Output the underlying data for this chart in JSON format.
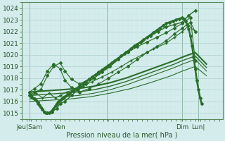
{
  "xlabel": "Pression niveau de la mer( hPa )",
  "bg_color": "#d4ecec",
  "grid_color": "#b0d0d0",
  "grid_minor_color": "#c8e4e4",
  "line_color": "#2a6e2a",
  "spine_color": "#5a8a5a",
  "tick_color": "#2a5a2a",
  "xlim": [
    0,
    125
  ],
  "ylim": [
    1014.5,
    1024.5
  ],
  "yticks": [
    1015,
    1016,
    1017,
    1018,
    1019,
    1020,
    1021,
    1022,
    1023,
    1024
  ],
  "xtick_positions": [
    5,
    24,
    53,
    100,
    110
  ],
  "xtick_labels": [
    "Jeu|Sam",
    "Ven",
    "",
    "Dim",
    "Lun|"
  ],
  "vlines": [
    5,
    53,
    100,
    110
  ],
  "series": [
    {
      "x": [
        5,
        8,
        10,
        13,
        16,
        19,
        22,
        24,
        27,
        31,
        35,
        40,
        45,
        50,
        55,
        60,
        65,
        70,
        75,
        80,
        85,
        90,
        95,
        100,
        104,
        108
      ],
      "y": [
        1016.8,
        1016.2,
        1015.8,
        1015.3,
        1015.0,
        1015.1,
        1015.4,
        1015.8,
        1016.0,
        1016.5,
        1017.0,
        1017.5,
        1018.0,
        1018.5,
        1019.0,
        1019.6,
        1020.2,
        1020.8,
        1021.2,
        1021.6,
        1022.0,
        1022.4,
        1022.6,
        1022.8,
        1023.4,
        1023.8
      ],
      "marker": "D",
      "markersize": 2,
      "lw": 1.0
    },
    {
      "x": [
        5,
        9,
        13,
        17,
        21,
        24,
        28,
        33,
        38,
        44,
        50,
        56,
        62,
        68,
        75,
        82,
        90,
        95,
        100,
        104,
        108
      ],
      "y": [
        1016.5,
        1016.7,
        1016.3,
        1016.7,
        1016.3,
        1016.5,
        1016.8,
        1017.0,
        1017.3,
        1017.7,
        1018.1,
        1018.5,
        1019.0,
        1019.5,
        1020.0,
        1020.5,
        1021.0,
        1021.5,
        1022.0,
        1022.5,
        1022.0
      ],
      "marker": "+",
      "markersize": 3,
      "lw": 0.8
    },
    {
      "x": [
        5,
        8,
        12,
        16,
        20,
        24,
        27,
        31,
        36,
        42,
        48,
        54,
        60,
        66,
        72,
        78,
        84,
        90,
        95,
        100,
        105,
        108
      ],
      "y": [
        1016.8,
        1017.1,
        1017.5,
        1018.6,
        1019.2,
        1018.8,
        1017.8,
        1017.2,
        1016.8,
        1017.1,
        1017.5,
        1018.0,
        1018.5,
        1019.0,
        1019.6,
        1020.2,
        1020.7,
        1021.2,
        1021.8,
        1022.3,
        1022.8,
        1022.0
      ],
      "marker": "D",
      "markersize": 2,
      "lw": 0.8
    },
    {
      "x": [
        5,
        8,
        12,
        16,
        20,
        24,
        27,
        31,
        36,
        42,
        48,
        54,
        60,
        66,
        72,
        78,
        84,
        90,
        95,
        100,
        105,
        108
      ],
      "y": [
        1016.5,
        1016.8,
        1017.0,
        1018.2,
        1019.0,
        1019.3,
        1018.6,
        1017.9,
        1017.5,
        1017.9,
        1018.4,
        1019.0,
        1019.6,
        1020.2,
        1020.7,
        1021.1,
        1021.5,
        1021.9,
        1022.3,
        1022.7,
        1023.2,
        1019.5
      ],
      "marker": "D",
      "markersize": 2,
      "lw": 0.8
    },
    {
      "x": [
        5,
        15,
        25,
        35,
        45,
        55,
        65,
        75,
        85,
        95,
        100,
        108,
        115
      ],
      "y": [
        1016.8,
        1016.9,
        1017.0,
        1017.1,
        1017.3,
        1017.6,
        1018.0,
        1018.5,
        1019.0,
        1019.5,
        1019.8,
        1020.2,
        1019.2
      ],
      "marker": null,
      "markersize": 0,
      "lw": 1.5
    },
    {
      "x": [
        5,
        15,
        25,
        35,
        45,
        55,
        65,
        75,
        85,
        95,
        100,
        108,
        115
      ],
      "y": [
        1016.5,
        1016.6,
        1016.7,
        1016.8,
        1017.0,
        1017.3,
        1017.7,
        1018.2,
        1018.7,
        1019.2,
        1019.5,
        1019.9,
        1018.9
      ],
      "marker": null,
      "markersize": 0,
      "lw": 1.0
    },
    {
      "x": [
        5,
        15,
        25,
        35,
        45,
        55,
        65,
        75,
        85,
        95,
        100,
        108,
        115
      ],
      "y": [
        1016.2,
        1016.3,
        1016.4,
        1016.5,
        1016.7,
        1017.0,
        1017.4,
        1017.9,
        1018.4,
        1018.9,
        1019.2,
        1019.6,
        1018.6
      ],
      "marker": null,
      "markersize": 0,
      "lw": 0.8
    },
    {
      "x": [
        5,
        18,
        30,
        43,
        55,
        68,
        80,
        93,
        100,
        108,
        115
      ],
      "y": [
        1016.0,
        1016.1,
        1016.2,
        1016.4,
        1016.7,
        1017.1,
        1017.6,
        1018.2,
        1018.6,
        1019.0,
        1018.2
      ],
      "marker": null,
      "markersize": 0,
      "lw": 0.8
    }
  ],
  "main_series": {
    "x": [
      5,
      6,
      7,
      8,
      9,
      10,
      11,
      12,
      13,
      14,
      15,
      16,
      17,
      18,
      19,
      20,
      21,
      22,
      23,
      24,
      25,
      26,
      27,
      28,
      29,
      30,
      32,
      34,
      36,
      38,
      40,
      42,
      44,
      46,
      48,
      50,
      52,
      54,
      56,
      58,
      60,
      62,
      64,
      66,
      68,
      70,
      72,
      74,
      76,
      78,
      80,
      82,
      84,
      86,
      88,
      90,
      92,
      94,
      96,
      98,
      100,
      101,
      102,
      103,
      104,
      105,
      106,
      107,
      108,
      109,
      110,
      111,
      112
    ],
    "y": [
      1016.5,
      1016.4,
      1016.3,
      1016.2,
      1016.1,
      1015.9,
      1015.7,
      1015.5,
      1015.3,
      1015.1,
      1015.0,
      1015.0,
      1015.0,
      1015.1,
      1015.2,
      1015.4,
      1015.6,
      1015.8,
      1016.0,
      1016.1,
      1016.2,
      1016.3,
      1016.4,
      1016.5,
      1016.6,
      1016.7,
      1016.9,
      1017.1,
      1017.3,
      1017.5,
      1017.7,
      1017.9,
      1018.1,
      1018.3,
      1018.5,
      1018.7,
      1018.9,
      1019.1,
      1019.3,
      1019.5,
      1019.7,
      1019.9,
      1020.1,
      1020.3,
      1020.5,
      1020.7,
      1020.9,
      1021.1,
      1021.3,
      1021.5,
      1021.7,
      1021.9,
      1022.1,
      1022.3,
      1022.5,
      1022.7,
      1022.8,
      1022.9,
      1023.0,
      1023.1,
      1023.2,
      1023.1,
      1022.9,
      1022.6,
      1022.2,
      1021.6,
      1020.8,
      1019.8,
      1018.8,
      1017.8,
      1017.0,
      1016.3,
      1015.8
    ],
    "lw": 1.8,
    "marker": "D",
    "markersize": 2
  }
}
